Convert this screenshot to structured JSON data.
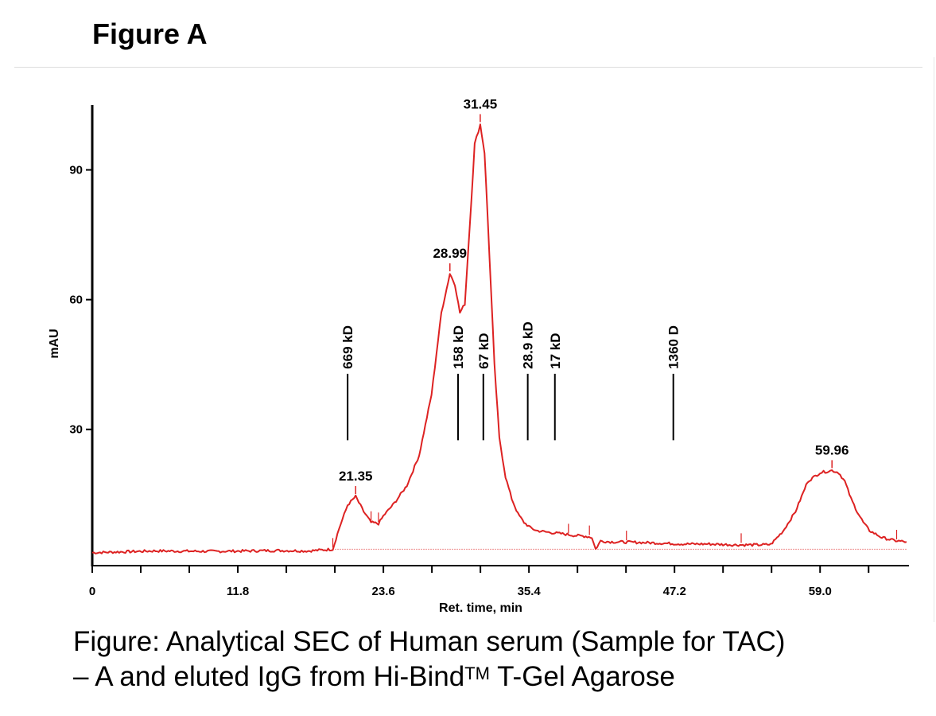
{
  "figure": {
    "title": "Figure A",
    "caption_line1": "Figure: Analytical SEC of Human serum (Sample for TAC)",
    "caption_line2_prefix": "– A and eluted IgG from Hi-Bind",
    "caption_line2_sup": "TM",
    "caption_line2_suffix": " T-Gel Agarose"
  },
  "chart_data": {
    "type": "line",
    "xlabel": "Ret. time, min",
    "ylabel": "mAU",
    "xlim": [
      0,
      66.2
    ],
    "ylim": [
      -1.5,
      105
    ],
    "x_ticks": [
      0,
      11.8,
      23.6,
      35.4,
      47.2,
      59.0
    ],
    "x_minor_step": 3.933,
    "y_ticks": [
      30,
      60,
      90
    ],
    "grid": false,
    "colors": {
      "trace": "#dd2222",
      "baseline": "#dd2222",
      "marker": "#000000"
    },
    "series": [
      {
        "x": [
          0,
          5,
          10,
          15,
          17.5,
          19.5,
          20.0,
          20.7,
          21.35,
          22.0,
          22.6,
          23.2,
          23.6,
          24.5,
          25.5,
          26.5,
          27.5,
          28.3,
          28.99,
          29.4,
          29.8,
          30.2,
          30.6,
          31.0,
          31.45,
          31.8,
          32.2,
          32.6,
          33.0,
          33.5,
          34.0,
          34.5,
          35.0,
          35.5,
          36,
          37,
          38,
          39,
          40,
          40.5,
          40.8,
          41.2,
          42,
          44,
          46,
          48,
          50,
          52,
          54,
          55,
          56,
          57,
          58,
          59.0,
          59.96,
          60.5,
          61,
          61.5,
          62,
          62.5,
          63,
          64,
          65,
          66
        ],
        "y": [
          1.5,
          1.9,
          1.8,
          2.0,
          1.9,
          2.3,
          7,
          12.5,
          14.5,
          11,
          8.5,
          8.2,
          10,
          13,
          17,
          24,
          38,
          57,
          66,
          63.5,
          57,
          59,
          77,
          96,
          100.5,
          94,
          70,
          45,
          28,
          19,
          14,
          10.5,
          8.5,
          7.3,
          6.6,
          6.2,
          5.9,
          5.5,
          5.3,
          5.0,
          2.3,
          4.2,
          4.0,
          3.9,
          3.7,
          3.5,
          3.5,
          3.3,
          3.3,
          3.4,
          6.5,
          11,
          18,
          20,
          20.5,
          20,
          18,
          14,
          11,
          8.5,
          6.6,
          5.0,
          4.3,
          4.0
        ]
      }
    ],
    "baseline": {
      "x": [
        19.5,
        66
      ],
      "y": [
        2.3,
        2.3
      ]
    },
    "peak_labels": [
      {
        "x": 21.35,
        "y": 14.5,
        "label": "21.35"
      },
      {
        "x": 28.99,
        "y": 66,
        "label": "28.99"
      },
      {
        "x": 31.45,
        "y": 100.5,
        "label": "31.45"
      },
      {
        "x": 59.96,
        "y": 20.5,
        "label": "59.96"
      }
    ],
    "minor_peak_ticks": [
      {
        "x": 19.5,
        "y": 2.3
      },
      {
        "x": 22.6,
        "y": 8.5
      },
      {
        "x": 23.2,
        "y": 8.2
      },
      {
        "x": 38.6,
        "y": 5.6
      },
      {
        "x": 40.3,
        "y": 5.2
      },
      {
        "x": 43.3,
        "y": 4.0
      },
      {
        "x": 52.6,
        "y": 3.4
      },
      {
        "x": 65.2,
        "y": 4.2
      }
    ],
    "mw_markers": [
      {
        "x": 20.7,
        "label": "669 kD"
      },
      {
        "x": 29.65,
        "label": "158 kD"
      },
      {
        "x": 31.7,
        "label": "67 kD"
      },
      {
        "x": 35.3,
        "label": "28.9 kD"
      },
      {
        "x": 37.5,
        "label": "17 kD"
      },
      {
        "x": 47.1,
        "label": "1360 D"
      }
    ],
    "mw_marker_y_range": [
      27.5,
      39
    ]
  }
}
